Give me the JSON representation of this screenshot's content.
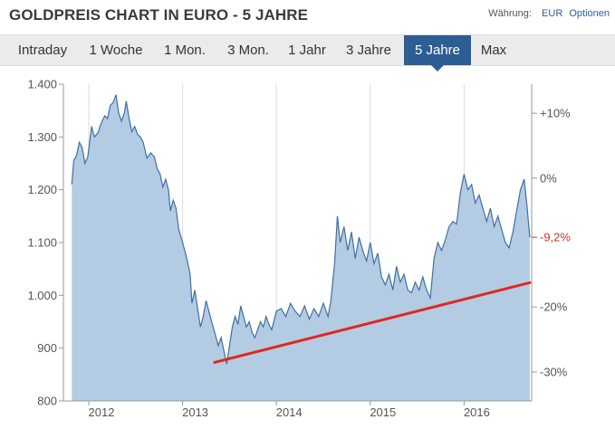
{
  "header": {
    "title": "GOLDPREIS CHART IN EURO - 5 JAHRE",
    "currency_label": "Währung:",
    "currency_value": "EUR",
    "options_label": "Optionen"
  },
  "tabs": [
    {
      "label": "Intraday",
      "active": false
    },
    {
      "label": "1 Woche",
      "active": false
    },
    {
      "label": "1 Mon.",
      "active": false
    },
    {
      "label": "3 Mon.",
      "active": false
    },
    {
      "label": "1 Jahr",
      "active": false
    },
    {
      "label": "3 Jahre",
      "active": false
    },
    {
      "label": "5 Jahre",
      "active": true
    },
    {
      "label": "Max",
      "active": false
    }
  ],
  "colors": {
    "area_fill": "#b3cce4",
    "line": "#3f6fa3",
    "trendline": "#e0281f",
    "active_tab": "#2c5d93",
    "grid": "#dddddd",
    "current_perf": "#c0392b"
  },
  "chart_data": {
    "type": "area",
    "title": "GOLDPREIS CHART IN EURO - 5 JAHRE",
    "x_tick_labels": [
      "2012",
      "2013",
      "2014",
      "2015",
      "2016"
    ],
    "x_ticks": [
      2012.0,
      2013.0,
      2014.0,
      2015.0,
      2016.0
    ],
    "xlim": [
      2011.73,
      2016.72
    ],
    "ylim": [
      800,
      1400
    ],
    "y_ticks": [
      800,
      900,
      1000,
      1100,
      1200,
      1300,
      1400
    ],
    "y_tick_labels": [
      "800",
      "900",
      "1.000",
      "1.100",
      "1.200",
      "1.300",
      "1.400"
    ],
    "secondary_axis": {
      "labels": [
        "+10%",
        "0%",
        "-20%",
        "-30%"
      ],
      "values": [
        1345,
        1222,
        978,
        855
      ],
      "current_label": "-9,2%",
      "current_value": 1110
    },
    "grid": "vertical",
    "series": [
      {
        "values": [
          [
            2011.82,
            1210
          ],
          [
            2011.84,
            1255
          ],
          [
            2011.87,
            1265
          ],
          [
            2011.9,
            1290
          ],
          [
            2011.93,
            1280
          ],
          [
            2011.96,
            1250
          ],
          [
            2011.99,
            1262
          ],
          [
            2012.03,
            1320
          ],
          [
            2012.06,
            1300
          ],
          [
            2012.1,
            1308
          ],
          [
            2012.13,
            1325
          ],
          [
            2012.17,
            1340
          ],
          [
            2012.2,
            1335
          ],
          [
            2012.23,
            1360
          ],
          [
            2012.26,
            1365
          ],
          [
            2012.29,
            1380
          ],
          [
            2012.32,
            1345
          ],
          [
            2012.35,
            1330
          ],
          [
            2012.38,
            1345
          ],
          [
            2012.4,
            1368
          ],
          [
            2012.43,
            1335
          ],
          [
            2012.46,
            1310
          ],
          [
            2012.49,
            1320
          ],
          [
            2012.52,
            1305
          ],
          [
            2012.55,
            1300
          ],
          [
            2012.58,
            1290
          ],
          [
            2012.62,
            1260
          ],
          [
            2012.66,
            1270
          ],
          [
            2012.7,
            1262
          ],
          [
            2012.73,
            1240
          ],
          [
            2012.76,
            1230
          ],
          [
            2012.79,
            1205
          ],
          [
            2012.82,
            1220
          ],
          [
            2012.85,
            1200
          ],
          [
            2012.87,
            1160
          ],
          [
            2012.9,
            1180
          ],
          [
            2012.93,
            1165
          ],
          [
            2012.96,
            1125
          ],
          [
            2013.0,
            1100
          ],
          [
            2013.03,
            1080
          ],
          [
            2013.05,
            1065
          ],
          [
            2013.08,
            1040
          ],
          [
            2013.1,
            985
          ],
          [
            2013.13,
            1010
          ],
          [
            2013.16,
            975
          ],
          [
            2013.19,
            940
          ],
          [
            2013.22,
            960
          ],
          [
            2013.25,
            990
          ],
          [
            2013.28,
            970
          ],
          [
            2013.31,
            950
          ],
          [
            2013.35,
            925
          ],
          [
            2013.38,
            905
          ],
          [
            2013.41,
            920
          ],
          [
            2013.44,
            895
          ],
          [
            2013.47,
            870
          ],
          [
            2013.5,
            905
          ],
          [
            2013.53,
            940
          ],
          [
            2013.56,
            960
          ],
          [
            2013.59,
            945
          ],
          [
            2013.62,
            980
          ],
          [
            2013.65,
            960
          ],
          [
            2013.68,
            940
          ],
          [
            2013.71,
            950
          ],
          [
            2013.74,
            930
          ],
          [
            2013.77,
            920
          ],
          [
            2013.8,
            935
          ],
          [
            2013.83,
            950
          ],
          [
            2013.86,
            940
          ],
          [
            2013.89,
            960
          ],
          [
            2013.92,
            945
          ],
          [
            2013.95,
            935
          ],
          [
            2014.0,
            970
          ],
          [
            2014.05,
            975
          ],
          [
            2014.1,
            960
          ],
          [
            2014.15,
            985
          ],
          [
            2014.2,
            970
          ],
          [
            2014.25,
            960
          ],
          [
            2014.3,
            980
          ],
          [
            2014.35,
            955
          ],
          [
            2014.4,
            975
          ],
          [
            2014.45,
            960
          ],
          [
            2014.5,
            985
          ],
          [
            2014.55,
            960
          ],
          [
            2014.58,
            990
          ],
          [
            2014.62,
            1060
          ],
          [
            2014.65,
            1150
          ],
          [
            2014.68,
            1100
          ],
          [
            2014.72,
            1130
          ],
          [
            2014.76,
            1085
          ],
          [
            2014.8,
            1120
          ],
          [
            2014.84,
            1070
          ],
          [
            2014.88,
            1110
          ],
          [
            2014.92,
            1085
          ],
          [
            2014.96,
            1065
          ],
          [
            2015.0,
            1100
          ],
          [
            2015.04,
            1060
          ],
          [
            2015.08,
            1080
          ],
          [
            2015.12,
            1035
          ],
          [
            2015.16,
            1020
          ],
          [
            2015.2,
            1040
          ],
          [
            2015.24,
            1010
          ],
          [
            2015.28,
            1055
          ],
          [
            2015.32,
            1025
          ],
          [
            2015.36,
            1040
          ],
          [
            2015.4,
            1010
          ],
          [
            2015.44,
            1005
          ],
          [
            2015.48,
            1025
          ],
          [
            2015.52,
            1010
          ],
          [
            2015.56,
            1035
          ],
          [
            2015.6,
            1010
          ],
          [
            2015.64,
            995
          ],
          [
            2015.68,
            1070
          ],
          [
            2015.72,
            1100
          ],
          [
            2015.76,
            1085
          ],
          [
            2015.8,
            1105
          ],
          [
            2015.84,
            1130
          ],
          [
            2015.88,
            1140
          ],
          [
            2015.92,
            1135
          ],
          [
            2015.96,
            1195
          ],
          [
            2016.0,
            1230
          ],
          [
            2016.04,
            1200
          ],
          [
            2016.08,
            1210
          ],
          [
            2016.12,
            1175
          ],
          [
            2016.16,
            1190
          ],
          [
            2016.2,
            1165
          ],
          [
            2016.24,
            1140
          ],
          [
            2016.28,
            1165
          ],
          [
            2016.32,
            1130
          ],
          [
            2016.36,
            1150
          ],
          [
            2016.4,
            1125
          ],
          [
            2016.44,
            1100
          ],
          [
            2016.48,
            1090
          ],
          [
            2016.52,
            1120
          ],
          [
            2016.56,
            1160
          ],
          [
            2016.6,
            1200
          ],
          [
            2016.64,
            1220
          ],
          [
            2016.67,
            1170
          ],
          [
            2016.7,
            1110
          ]
        ]
      }
    ],
    "trendline": [
      [
        2013.34,
        873
      ],
      [
        2016.7,
        1024
      ]
    ]
  }
}
